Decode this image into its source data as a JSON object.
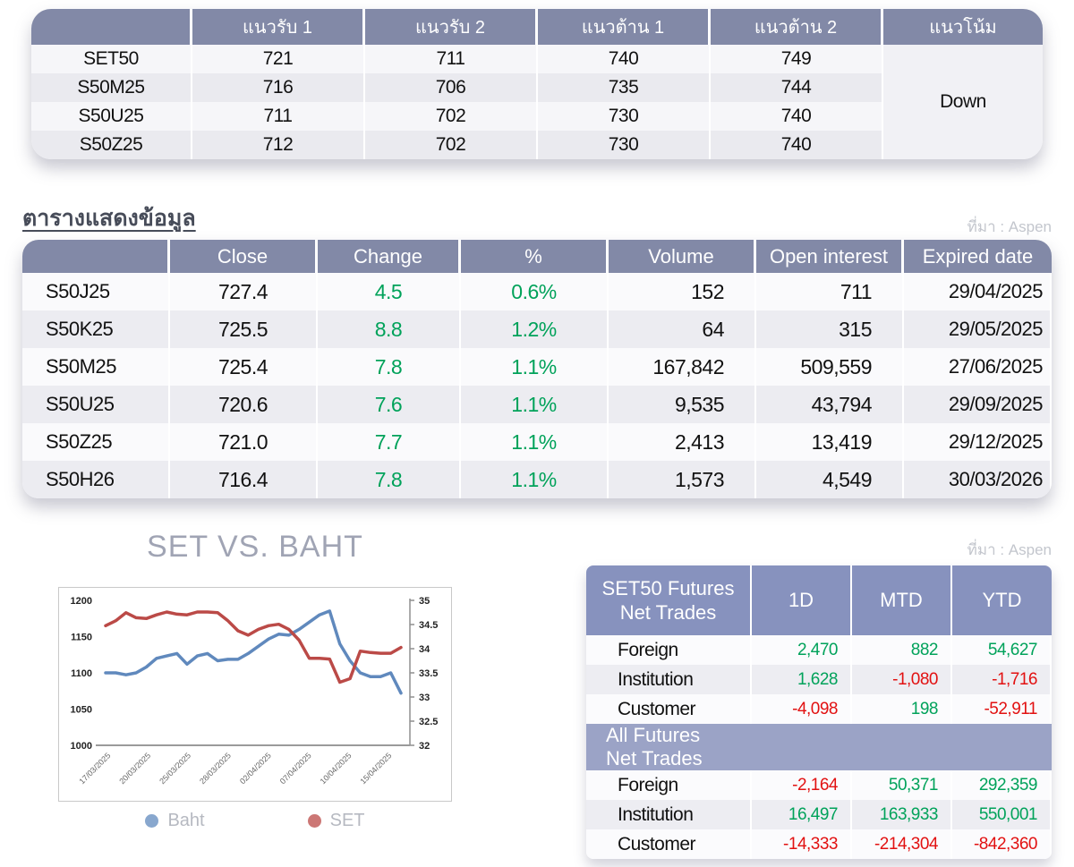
{
  "source_label": "ที่มา : Aspen",
  "support_table": {
    "headers": [
      "แนวรับ 1",
      "แนวรับ 2",
      "แนวต้าน 1",
      "แนวต้าน 2",
      "แนวโน้ม"
    ],
    "rows": [
      {
        "name": "SET50",
        "s1": "721",
        "s2": "711",
        "r1": "740",
        "r2": "749"
      },
      {
        "name": "S50M25",
        "s1": "716",
        "s2": "706",
        "r1": "735",
        "r2": "744"
      },
      {
        "name": "S50U25",
        "s1": "711",
        "s2": "702",
        "r1": "730",
        "r2": "740"
      },
      {
        "name": "S50Z25",
        "s1": "712",
        "s2": "702",
        "r1": "730",
        "r2": "740"
      }
    ],
    "trend": "Down"
  },
  "data_table": {
    "title": "ตารางแสดงข้อมูล",
    "headers": [
      "Close",
      "Change",
      "%",
      "Volume",
      "Open interest",
      "Expired date"
    ],
    "rows": [
      [
        "S50J25",
        "727.4",
        "4.5",
        "0.6%",
        "152",
        "711",
        "29/04/2025"
      ],
      [
        "S50K25",
        "725.5",
        "8.8",
        "1.2%",
        "64",
        "315",
        "29/05/2025"
      ],
      [
        "S50M25",
        "725.4",
        "7.8",
        "1.1%",
        "167,842",
        "509,559",
        "27/06/2025"
      ],
      [
        "S50U25",
        "720.6",
        "7.6",
        "1.1%",
        "9,535",
        "43,794",
        "29/09/2025"
      ],
      [
        "S50Z25",
        "721.0",
        "7.7",
        "1.1%",
        "2,413",
        "13,419",
        "29/12/2025"
      ],
      [
        "S50H26",
        "716.4",
        "7.8",
        "1.1%",
        "1,573",
        "4,549",
        "30/03/2026"
      ]
    ]
  },
  "chart_data": {
    "type": "line",
    "title": "SET VS. BAHT",
    "x_tick_labels": [
      "17/03/2025",
      "20/03/2025",
      "25/03/2025",
      "28/03/2025",
      "02/04/2025",
      "07/04/2025",
      "10/04/2025",
      "15/04/2025"
    ],
    "left_axis": {
      "ticks": [
        1000,
        1050,
        1100,
        1150,
        1200
      ],
      "range": [
        1000,
        1200
      ]
    },
    "right_axis": {
      "ticks": [
        32,
        32.5,
        33,
        33.5,
        34,
        34.5,
        35
      ],
      "range": [
        32,
        35
      ]
    },
    "grid": false,
    "legend_position": "bottom",
    "series": [
      {
        "name": "Baht",
        "axis": "right",
        "color": "#6089bd",
        "values": [
          33.5,
          33.5,
          33.46,
          33.5,
          33.62,
          33.8,
          33.85,
          33.9,
          33.68,
          33.85,
          33.9,
          33.75,
          33.78,
          33.78,
          33.9,
          34.05,
          34.2,
          34.3,
          34.28,
          34.4,
          34.55,
          34.7,
          34.78,
          34.1,
          33.75,
          33.5,
          33.42,
          33.42,
          33.5,
          33.08
        ]
      },
      {
        "name": "SET",
        "axis": "left",
        "color": "#bb4a47",
        "values": [
          1165,
          1172,
          1183,
          1176,
          1175,
          1180,
          1184,
          1181,
          1180,
          1184,
          1184,
          1183,
          1172,
          1158,
          1152,
          1160,
          1165,
          1167,
          1160,
          1145,
          1120,
          1120,
          1119,
          1087,
          1092,
          1130,
          1128,
          1127,
          1127,
          1135
        ]
      }
    ]
  },
  "net_trades": {
    "set50": {
      "title_line1": "SET50 Futures",
      "title_line2": "Net Trades",
      "columns": [
        "1D",
        "MTD",
        "YTD"
      ],
      "rows": [
        {
          "name": "Foreign",
          "values": [
            "2,470",
            "882",
            "54,627"
          ]
        },
        {
          "name": "Institution",
          "values": [
            "1,628",
            "-1,080",
            "-1,716"
          ]
        },
        {
          "name": "Customer",
          "values": [
            "-4,098",
            "198",
            "-52,911"
          ]
        }
      ]
    },
    "all": {
      "title_line1": "All Futures",
      "title_line2": "Net Trades",
      "rows": [
        {
          "name": "Foreign",
          "values": [
            "-2,164",
            "50,371",
            "292,359"
          ]
        },
        {
          "name": "Institution",
          "values": [
            "16,497",
            "163,933",
            "550,001"
          ]
        },
        {
          "name": "Customer",
          "values": [
            "-14,333",
            "-214,304",
            "-842,360"
          ]
        }
      ]
    }
  },
  "colors": {
    "header_slate": "#8289A7",
    "header_blue": "#8792BE",
    "band_blue": "#9BA3C6",
    "positive": "#00A25A",
    "negative": "#E21111",
    "line_baht": "#6089bd",
    "line_set": "#bb4a47"
  }
}
